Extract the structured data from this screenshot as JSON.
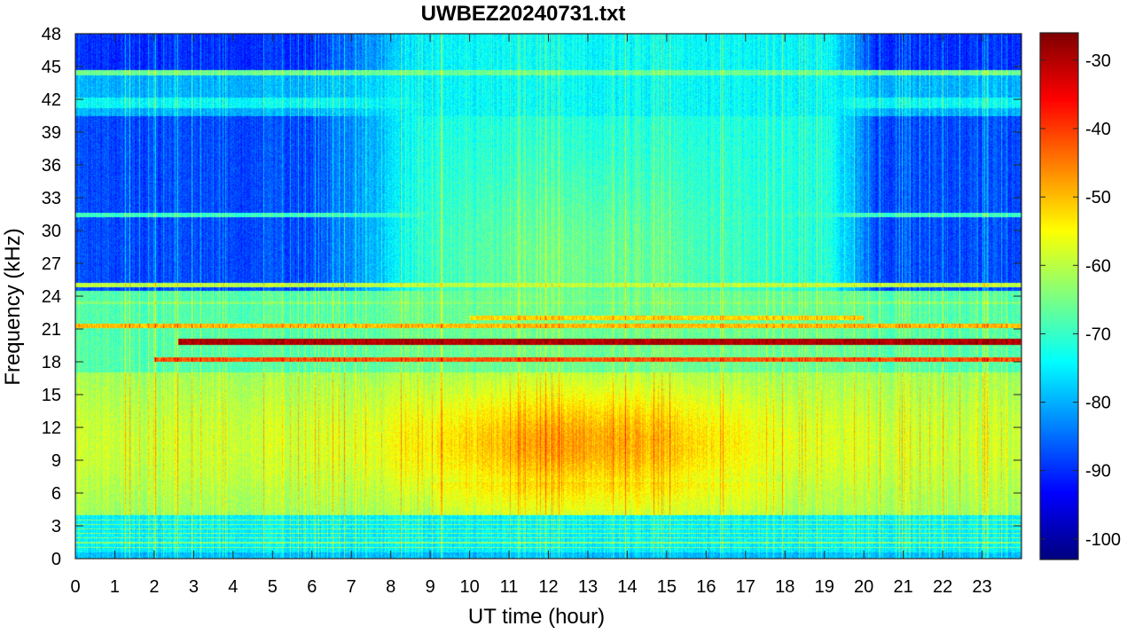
{
  "chart_data": {
    "type": "heatmap",
    "title": "UWBEZ20240731.txt",
    "xlabel": "UT time (hour)",
    "ylabel": "Frequency (kHz)",
    "xlim": [
      0,
      24
    ],
    "ylim": [
      0,
      48
    ],
    "x_ticks": [
      0,
      1,
      2,
      3,
      4,
      5,
      6,
      7,
      8,
      9,
      10,
      11,
      12,
      13,
      14,
      15,
      16,
      17,
      18,
      19,
      20,
      21,
      22,
      23
    ],
    "y_ticks": [
      0,
      3,
      6,
      9,
      12,
      15,
      18,
      21,
      24,
      27,
      30,
      33,
      36,
      39,
      42,
      45,
      48
    ],
    "colorbar": {
      "colormap": "jet",
      "clim": [
        -103,
        -26
      ],
      "ticks": [
        -100,
        -90,
        -80,
        -70,
        -60,
        -50,
        -40,
        -30
      ]
    },
    "features": [
      {
        "label": "strong carrier",
        "freq_khz": 19.8,
        "t_start": 2.6,
        "t_end": 24,
        "level_db": -30
      },
      {
        "label": "carrier",
        "freq_khz": 18.2,
        "t_start": 2.0,
        "t_end": 24,
        "level_db": -42
      },
      {
        "label": "carrier",
        "freq_khz": 21.3,
        "t_start": 0,
        "t_end": 24,
        "level_db": -50
      },
      {
        "label": "daytime broadband hump",
        "freq_low_khz": 6,
        "freq_high_khz": 16,
        "t_peak": 12.8,
        "level_db": -50
      }
    ]
  }
}
